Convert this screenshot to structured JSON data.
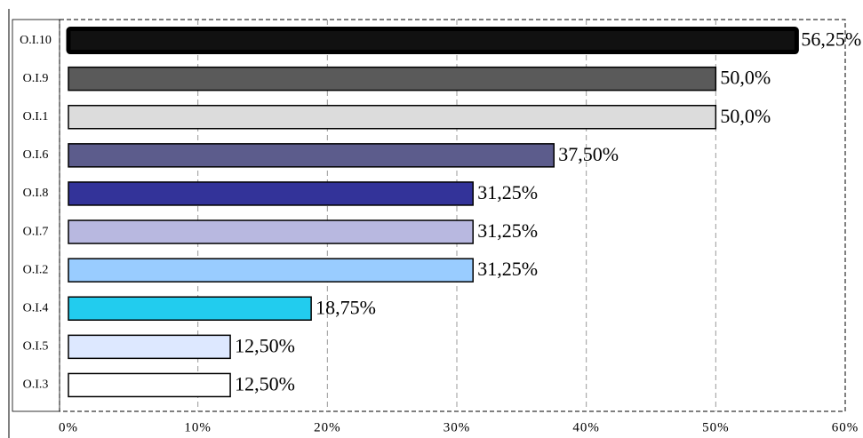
{
  "chart_data": {
    "type": "hbar",
    "categories": [
      "O.I.10",
      "O.I.9",
      "O.I.1",
      "O.I.6",
      "O.I.8",
      "O.I.7",
      "O.I.2",
      "O.I.4",
      "O.I.5",
      "O.I.3"
    ],
    "values": [
      56.25,
      50.0,
      50.0,
      37.5,
      31.25,
      31.25,
      31.25,
      18.75,
      12.5,
      12.5
    ],
    "value_labels": [
      "56,25%",
      "50,0%",
      "50,0%",
      "37,50%",
      "31,25%",
      "31,25%",
      "31,25%",
      "18,75%",
      "12,50%",
      "12,50%"
    ],
    "colors": [
      "#111111",
      "#5a5a5a",
      "#dcdcdc",
      "#5c5c8c",
      "#333399",
      "#b8b8e0",
      "#99ccff",
      "#22ccee",
      "#dde8ff",
      "#ffffff"
    ],
    "xlim": [
      0,
      60
    ],
    "xticks": [
      {
        "value": 0,
        "label": "0%"
      },
      {
        "value": 10,
        "label": "10%"
      },
      {
        "value": 20,
        "label": "20%"
      },
      {
        "value": 30,
        "label": "30%"
      },
      {
        "value": 40,
        "label": "40%"
      },
      {
        "value": 50,
        "label": "50%"
      },
      {
        "value": 60,
        "label": "60%"
      }
    ],
    "grid": true
  }
}
